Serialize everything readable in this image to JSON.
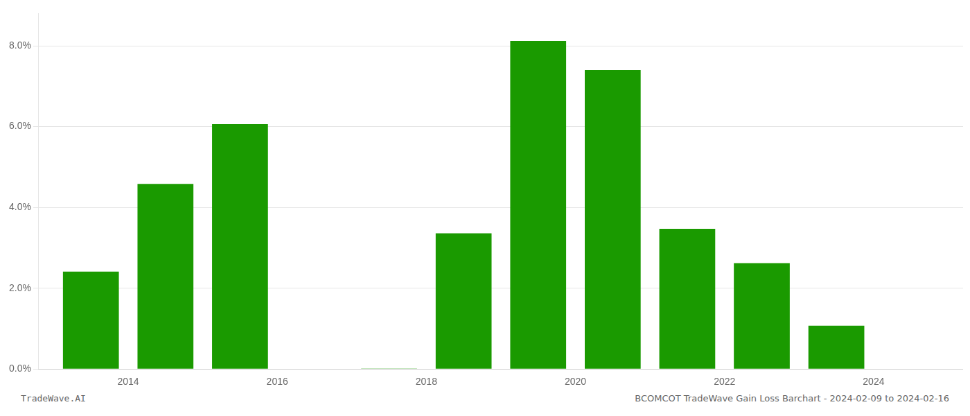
{
  "chart_data": {
    "type": "bar",
    "x": [
      2013.5,
      2014.5,
      2015.5,
      2017.5,
      2018.5,
      2019.5,
      2020.5,
      2021.5,
      2022.5,
      2023.5
    ],
    "values": [
      0.0241,
      0.0458,
      0.0606,
      5e-05,
      0.0336,
      0.0812,
      0.074,
      0.0347,
      0.0262,
      0.0107
    ],
    "color": "#1a9a00",
    "xlim": [
      2012.8,
      2025.2
    ],
    "xticks": [
      2014,
      2016,
      2018,
      2020,
      2022,
      2024
    ],
    "ylim": [
      0.0,
      0.088
    ],
    "yticks": [
      {
        "value": 0.0,
        "label": "0.0%"
      },
      {
        "value": 0.02,
        "label": "2.0%"
      },
      {
        "value": 0.04,
        "label": "4.0%"
      },
      {
        "value": 0.06,
        "label": "6.0%"
      },
      {
        "value": 0.08,
        "label": "8.0%"
      }
    ],
    "grid": true,
    "annotations": [
      "TradeWave.AI",
      "BCOMCOT TradeWave Gain Loss Barchart - 2024-02-09 to 2024-02-16"
    ]
  }
}
